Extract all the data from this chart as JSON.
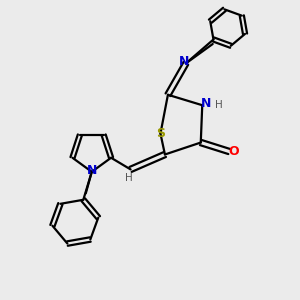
{
  "bg_color": "#ebebeb",
  "atom_colors": {
    "C": "#000000",
    "N": "#0000cc",
    "O": "#ff0000",
    "S": "#999900",
    "H": "#555555"
  },
  "bond_color": "#000000",
  "bond_width": 1.6,
  "figsize": [
    3.0,
    3.0
  ],
  "dpi": 100,
  "xlim": [
    0,
    10
  ],
  "ylim": [
    0,
    10
  ]
}
